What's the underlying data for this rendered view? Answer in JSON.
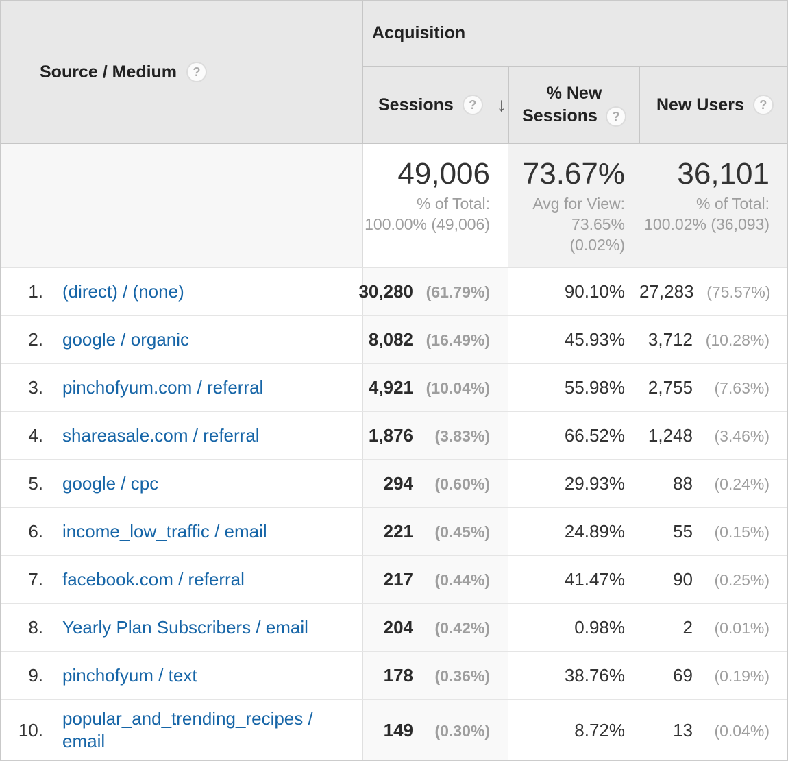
{
  "colors": {
    "link_blue": "#1665a7",
    "header_bg": "#e8e8e8",
    "sorted_column_bg": "#f9f9f9",
    "summary_cell_bg": "#f2f2f2",
    "muted_gray": "#9e9e9e",
    "text": "#333333"
  },
  "icons": {
    "help": "?",
    "sort_desc": "↓"
  },
  "table": {
    "source_header": "Source / Medium",
    "group_header": "Acquisition",
    "columns": {
      "sessions": "Sessions",
      "new_sessions_line1": "% New",
      "new_sessions_line2": "Sessions",
      "new_users": "New Users"
    },
    "summary": {
      "sessions_value": "49,006",
      "sessions_sub": [
        "% of Total:",
        "100.00% (49,006)"
      ],
      "new_sessions_value": "73.67%",
      "new_sessions_sub": [
        "Avg for View:",
        "73.65%",
        "(0.02%)"
      ],
      "new_users_value": "36,101",
      "new_users_sub": [
        "% of Total:",
        "100.02% (36,093)"
      ]
    },
    "rows": [
      {
        "rank": "1.",
        "source": "(direct) / (none)",
        "sessions": "30,280",
        "sessions_pct": "(61.79%)",
        "new_sessions_pct": "90.10%",
        "new_users": "27,283",
        "new_users_pct": "(75.57%)"
      },
      {
        "rank": "2.",
        "source": "google / organic",
        "sessions": "8,082",
        "sessions_pct": "(16.49%)",
        "new_sessions_pct": "45.93%",
        "new_users": "3,712",
        "new_users_pct": "(10.28%)"
      },
      {
        "rank": "3.",
        "source": "pinchofyum.com / referral",
        "sessions": "4,921",
        "sessions_pct": "(10.04%)",
        "new_sessions_pct": "55.98%",
        "new_users": "2,755",
        "new_users_pct": "(7.63%)"
      },
      {
        "rank": "4.",
        "source": "shareasale.com / referral",
        "sessions": "1,876",
        "sessions_pct": "(3.83%)",
        "new_sessions_pct": "66.52%",
        "new_users": "1,248",
        "new_users_pct": "(3.46%)"
      },
      {
        "rank": "5.",
        "source": "google / cpc",
        "sessions": "294",
        "sessions_pct": "(0.60%)",
        "new_sessions_pct": "29.93%",
        "new_users": "88",
        "new_users_pct": "(0.24%)"
      },
      {
        "rank": "6.",
        "source": "income_low_traffic / email",
        "sessions": "221",
        "sessions_pct": "(0.45%)",
        "new_sessions_pct": "24.89%",
        "new_users": "55",
        "new_users_pct": "(0.15%)"
      },
      {
        "rank": "7.",
        "source": "facebook.com / referral",
        "sessions": "217",
        "sessions_pct": "(0.44%)",
        "new_sessions_pct": "41.47%",
        "new_users": "90",
        "new_users_pct": "(0.25%)"
      },
      {
        "rank": "8.",
        "source": "Yearly Plan Subscribers / email",
        "sessions": "204",
        "sessions_pct": "(0.42%)",
        "new_sessions_pct": "0.98%",
        "new_users": "2",
        "new_users_pct": "(0.01%)"
      },
      {
        "rank": "9.",
        "source": "pinchofyum / text",
        "sessions": "178",
        "sessions_pct": "(0.36%)",
        "new_sessions_pct": "38.76%",
        "new_users": "69",
        "new_users_pct": "(0.19%)"
      },
      {
        "rank": "10.",
        "source": "popular_and_trending_recipes / email",
        "sessions": "149",
        "sessions_pct": "(0.30%)",
        "new_sessions_pct": "8.72%",
        "new_users": "13",
        "new_users_pct": "(0.04%)"
      }
    ]
  }
}
